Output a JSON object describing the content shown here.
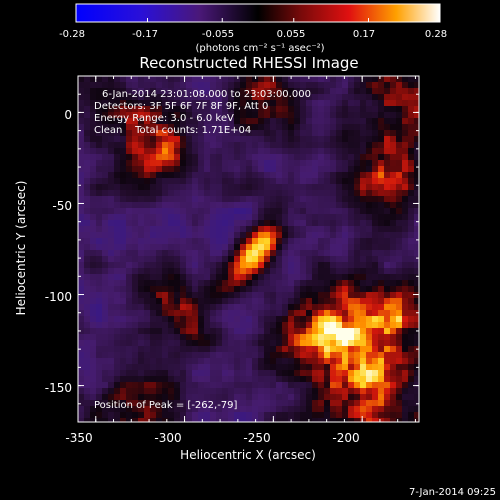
{
  "colorbar": {
    "ticks": [
      "-0.28",
      "-0.17",
      "-0.055",
      "0.055",
      "0.17",
      "0.28"
    ],
    "tick_values": [
      -0.28,
      -0.17,
      -0.055,
      0.055,
      0.17,
      0.28
    ],
    "range": [
      -0.28,
      0.28
    ],
    "units": "(photons cm⁻² s⁻¹ asec⁻²)"
  },
  "title": "Reconstructed RHESSI Image",
  "info": {
    "line1": "6-Jan-2014 23:01:08.000 to 23:03:00.000",
    "line2": "Detectors: 3F 5F 6F 7F 8F 9F, Att 0",
    "line3": "Energy Range: 3.0 - 6.0 keV",
    "line4": "Clean    Total counts: 1.71E+04"
  },
  "peak_label": "Position of Peak = [-262,-79]",
  "timestamp": "7-Jan-2014 09:25",
  "xaxis": {
    "label": "Heliocentric X (arcsec)",
    "range": [
      -360,
      -168
    ],
    "ticks": [
      -350,
      -300,
      -250,
      -200
    ],
    "tick_labels": [
      "-350",
      "-300",
      "-250",
      "-200"
    ]
  },
  "yaxis": {
    "label": "Heliocentric Y (arcsec)",
    "range": [
      -170,
      20
    ],
    "ticks": [
      0,
      -50,
      -100,
      -150
    ],
    "tick_labels": [
      "0",
      "-50",
      "-100",
      "-150"
    ]
  },
  "source": {
    "peak_x": -262,
    "peak_y": -79
  },
  "colors": {
    "background": "#000000",
    "foreground": "#ffffff"
  }
}
